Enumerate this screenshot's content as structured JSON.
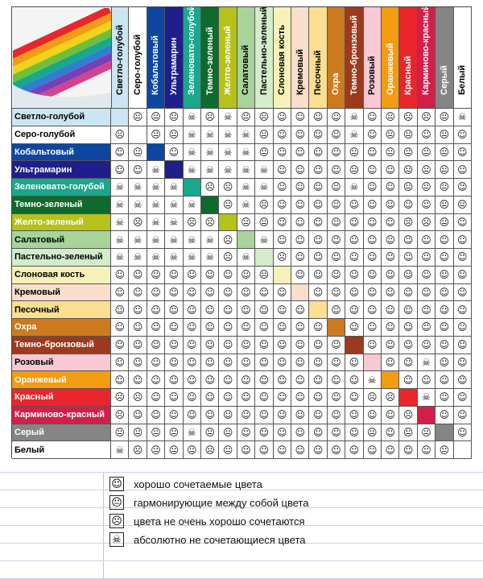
{
  "colors": [
    {
      "name": "Светло-голубой",
      "hex": "#cce5f3",
      "text": "#000"
    },
    {
      "name": "Серо-голубой",
      "hex": "#ffffff",
      "text": "#000"
    },
    {
      "name": "Кобальтовый",
      "hex": "#0e47a1",
      "text": "#fff"
    },
    {
      "name": "Ультрамарин",
      "hex": "#1e1e8c",
      "text": "#fff"
    },
    {
      "name": "Зеленовато-голубой",
      "hex": "#1aa88c",
      "text": "#fff"
    },
    {
      "name": "Темно-зеленый",
      "hex": "#0e6a2d",
      "text": "#fff"
    },
    {
      "name": "Желто-зеленый",
      "hex": "#b5c21a",
      "text": "#fff"
    },
    {
      "name": "Салатовый",
      "hex": "#a8d49a",
      "text": "#000"
    },
    {
      "name": "Пастельно-зеленый",
      "hex": "#d3ecc9",
      "text": "#000"
    },
    {
      "name": "Слоновая кость",
      "hex": "#f6f1b8",
      "text": "#000"
    },
    {
      "name": "Кремовый",
      "hex": "#f9dfcb",
      "text": "#000"
    },
    {
      "name": "Песочный",
      "hex": "#fbdf90",
      "text": "#000"
    },
    {
      "name": "Охра",
      "hex": "#cd7a1e",
      "text": "#fff"
    },
    {
      "name": "Темно-бронзовый",
      "hex": "#9d3a1d",
      "text": "#fff"
    },
    {
      "name": "Розовый",
      "hex": "#f8c8d3",
      "text": "#000"
    },
    {
      "name": "Оранжевый",
      "hex": "#f39c12",
      "text": "#fff"
    },
    {
      "name": "Красный",
      "hex": "#e8262c",
      "text": "#fff"
    },
    {
      "name": "Карминово-красный",
      "hex": "#d21f4a",
      "text": "#fff"
    },
    {
      "name": "Серый",
      "hex": "#858585",
      "text": "#fff"
    },
    {
      "name": "Белый",
      "hex": "#ffffff",
      "text": "#000"
    }
  ],
  "symbols": {
    "good": "☺",
    "harmony": "😐",
    "bad": "☹",
    "never": "☠"
  },
  "matrix": [
    [
      "d",
      "h",
      "h",
      "h",
      "n",
      "b",
      "n",
      "h",
      "b",
      "g",
      "g",
      "g",
      "g",
      "n",
      "g",
      "h",
      "b",
      "b",
      "h",
      "n"
    ],
    [
      "b",
      "d",
      "h",
      "h",
      "n",
      "n",
      "n",
      "n",
      "h",
      "g",
      "g",
      "g",
      "g",
      "n",
      "g",
      "h",
      "h",
      "g",
      "h",
      "g"
    ],
    [
      "g",
      "h",
      "d",
      "g",
      "n",
      "n",
      "n",
      "n",
      "h",
      "g",
      "g",
      "g",
      "g",
      "h",
      "g",
      "h",
      "h",
      "h",
      "h",
      "g"
    ],
    [
      "g",
      "g",
      "n",
      "d",
      "n",
      "n",
      "n",
      "n",
      "n",
      "g",
      "g",
      "g",
      "g",
      "h",
      "g",
      "g",
      "h",
      "h",
      "h",
      "g"
    ],
    [
      "n",
      "n",
      "n",
      "n",
      "d",
      "b",
      "b",
      "n",
      "n",
      "g",
      "g",
      "g",
      "g",
      "n",
      "g",
      "g",
      "h",
      "h",
      "h",
      "g"
    ],
    [
      "n",
      "n",
      "n",
      "n",
      "n",
      "d",
      "h",
      "n",
      "b",
      "g",
      "g",
      "g",
      "g",
      "g",
      "g",
      "g",
      "g",
      "g",
      "h",
      "h"
    ],
    [
      "n",
      "b",
      "n",
      "n",
      "b",
      "b",
      "d",
      "h",
      "h",
      "g",
      "g",
      "g",
      "g",
      "g",
      "g",
      "g",
      "b",
      "b",
      "h",
      "g"
    ],
    [
      "n",
      "n",
      "n",
      "n",
      "n",
      "n",
      "b",
      "d",
      "n",
      "g",
      "g",
      "g",
      "g",
      "g",
      "g",
      "g",
      "g",
      "g",
      "g",
      "g"
    ],
    [
      "n",
      "n",
      "n",
      "n",
      "n",
      "n",
      "b",
      "n",
      "d",
      "b",
      "g",
      "g",
      "g",
      "g",
      "g",
      "g",
      "g",
      "g",
      "g",
      "g"
    ],
    [
      "g",
      "g",
      "g",
      "g",
      "g",
      "g",
      "g",
      "g",
      "b",
      "d",
      "g",
      "g",
      "g",
      "g",
      "g",
      "g",
      "g",
      "g",
      "g",
      "g"
    ],
    [
      "g",
      "g",
      "g",
      "g",
      "g",
      "g",
      "g",
      "g",
      "g",
      "g",
      "d",
      "g",
      "g",
      "g",
      "g",
      "g",
      "g",
      "g",
      "g",
      "g"
    ],
    [
      "g",
      "g",
      "g",
      "g",
      "g",
      "g",
      "g",
      "g",
      "g",
      "g",
      "g",
      "d",
      "g",
      "g",
      "g",
      "g",
      "g",
      "g",
      "g",
      "g"
    ],
    [
      "g",
      "g",
      "g",
      "g",
      "g",
      "g",
      "g",
      "g",
      "g",
      "g",
      "g",
      "g",
      "d",
      "g",
      "g",
      "g",
      "g",
      "g",
      "g",
      "g"
    ],
    [
      "g",
      "g",
      "g",
      "g",
      "g",
      "g",
      "g",
      "g",
      "g",
      "g",
      "g",
      "g",
      "g",
      "d",
      "g",
      "g",
      "g",
      "g",
      "g",
      "g"
    ],
    [
      "g",
      "g",
      "g",
      "g",
      "g",
      "g",
      "g",
      "g",
      "g",
      "g",
      "g",
      "g",
      "g",
      "g",
      "d",
      "g",
      "g",
      "n",
      "g",
      "g"
    ],
    [
      "g",
      "g",
      "g",
      "g",
      "g",
      "g",
      "g",
      "g",
      "g",
      "g",
      "g",
      "g",
      "g",
      "g",
      "n",
      "d",
      "g",
      "g",
      "g",
      "g"
    ],
    [
      "b",
      "b",
      "g",
      "g",
      "g",
      "g",
      "g",
      "g",
      "g",
      "g",
      "g",
      "g",
      "g",
      "g",
      "b",
      "b",
      "d",
      "n",
      "g",
      "g"
    ],
    [
      "b",
      "g",
      "g",
      "g",
      "g",
      "g",
      "g",
      "g",
      "g",
      "g",
      "g",
      "g",
      "g",
      "g",
      "g",
      "g",
      "b",
      "d",
      "g",
      "g"
    ],
    [
      "h",
      "h",
      "h",
      "h",
      "n",
      "h",
      "h",
      "g",
      "g",
      "g",
      "g",
      "g",
      "g",
      "g",
      "h",
      "g",
      "h",
      "h",
      "d",
      "g"
    ],
    [
      "n",
      "b",
      "h",
      "h",
      "h",
      "b",
      "h",
      "g",
      "g",
      "g",
      "g",
      "g",
      "g",
      "g",
      "g",
      "g",
      "g",
      "g",
      "h",
      "d"
    ]
  ],
  "legend": [
    {
      "symbol": "☺",
      "text": "хорошо сочетаемые цвета"
    },
    {
      "symbol": "😐",
      "text": "гармонирующие между собой цвета"
    },
    {
      "symbol": "☹",
      "text": "цвета не очень хорошо сочетаются"
    },
    {
      "symbol": "☠",
      "text": "абсолютно не сочетающиеся цвета"
    }
  ]
}
